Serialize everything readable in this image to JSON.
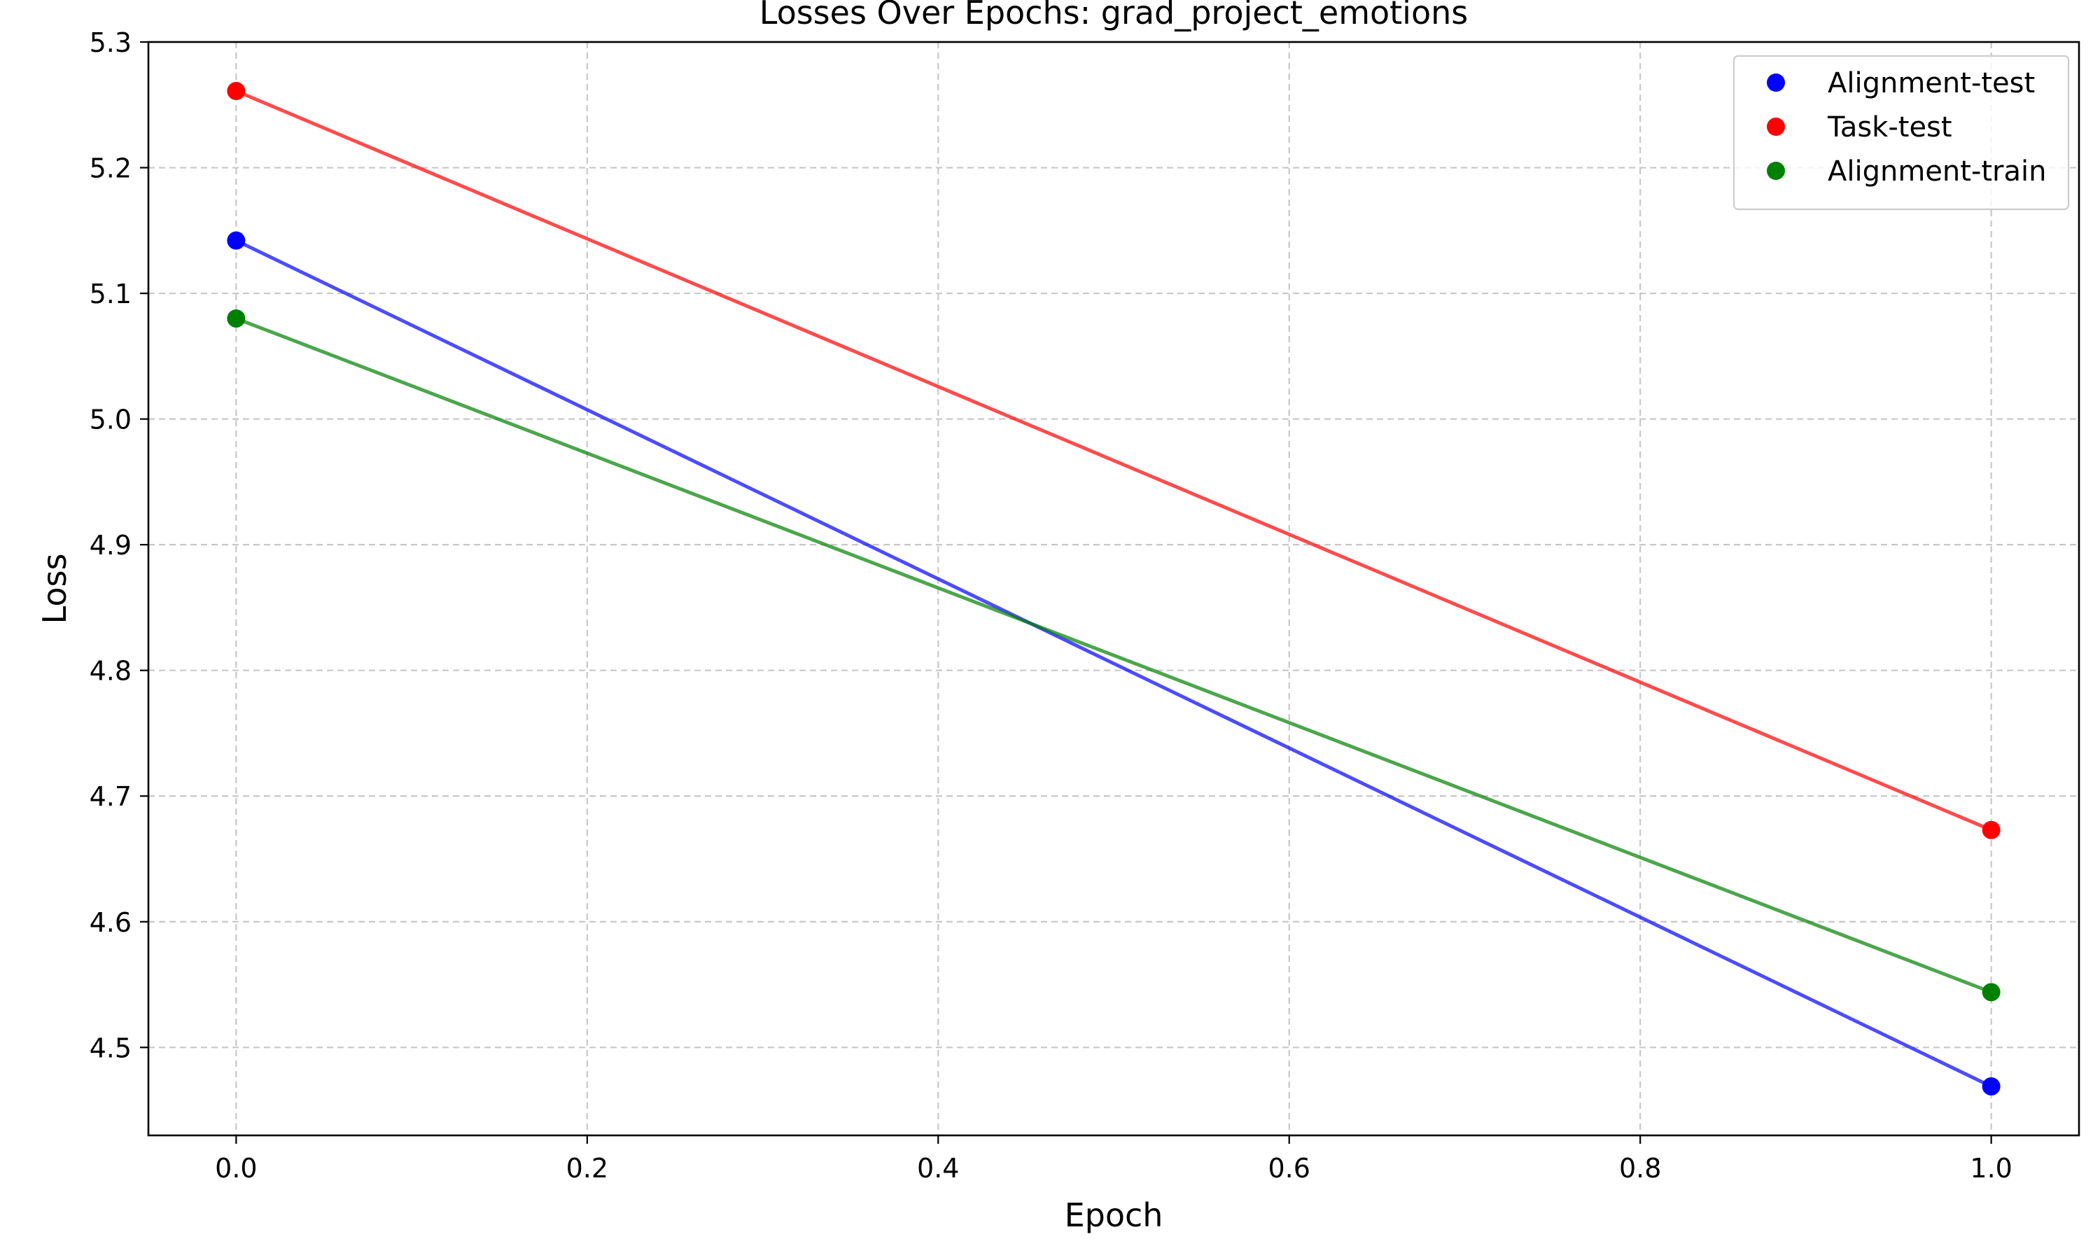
{
  "chart_data": {
    "type": "line",
    "title": "Losses Over Epochs: grad_project_emotions",
    "xlabel": "Epoch",
    "ylabel": "Loss",
    "xlim": [
      -0.05,
      1.05
    ],
    "ylim": [
      4.43,
      5.3
    ],
    "xticks": [
      0.0,
      0.2,
      0.4,
      0.6,
      0.8,
      1.0
    ],
    "xtick_labels": [
      "0.0",
      "0.2",
      "0.4",
      "0.6",
      "0.8",
      "1.0"
    ],
    "yticks": [
      4.5,
      4.6,
      4.7,
      4.8,
      4.9,
      5.0,
      5.1,
      5.2,
      5.3
    ],
    "ytick_labels": [
      "4.5",
      "4.6",
      "4.7",
      "4.8",
      "4.9",
      "5.0",
      "5.1",
      "5.2",
      "5.3"
    ],
    "grid": true,
    "legend_position": "top-right",
    "x": [
      0,
      1
    ],
    "series": [
      {
        "name": "Alignment-test",
        "color": "#0000ff",
        "values": [
          5.142,
          4.469
        ]
      },
      {
        "name": "Task-test",
        "color": "#ff0000",
        "values": [
          5.261,
          4.673
        ]
      },
      {
        "name": "Alignment-train",
        "color": "#008000",
        "values": [
          5.08,
          4.544
        ]
      }
    ]
  }
}
